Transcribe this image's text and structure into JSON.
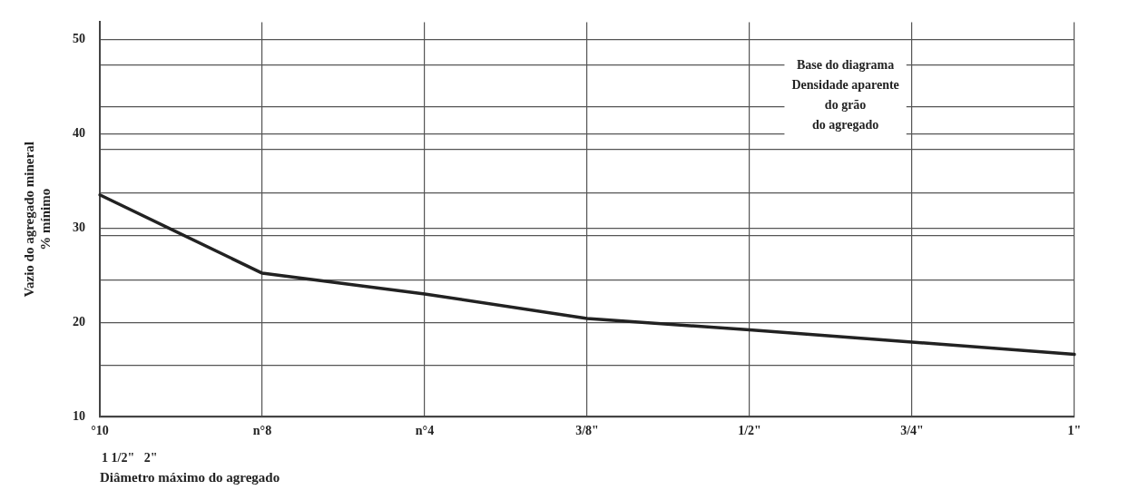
{
  "chart_data": {
    "type": "line",
    "xlabel": "Diâmetro máximo do agregado",
    "ylabel": "Vazio do agregado mineral\n% mínimo",
    "categories": [
      "°10",
      "n°8",
      "n°4",
      "3/8\"",
      "1/2\"",
      "3/4\"",
      "1\""
    ],
    "series": [
      {
        "color": "#222222",
        "values": [
          33.5,
          25.2,
          23.0,
          20.4,
          19.2,
          17.9,
          16.6
        ]
      }
    ],
    "ylim": [
      10,
      51.8
    ],
    "yticks": [
      10,
      {
        "value": 15.4,
        "label": null
      },
      20,
      {
        "value": 24.5,
        "label": null
      },
      {
        "value": 29.2,
        "label": null
      },
      30,
      {
        "value": 33.7,
        "label": null
      },
      {
        "value": 38.3,
        "label": null
      },
      40,
      {
        "value": 42.8,
        "label": null
      },
      {
        "value": 47.3,
        "label": null
      },
      50
    ],
    "grid": true,
    "marker": "none",
    "line_style": "solid",
    "annotations": [
      "Base do diagrama\nDensidade aparente\ndo grão\ndo agregado",
      "1 1/2\"   2\""
    ]
  }
}
